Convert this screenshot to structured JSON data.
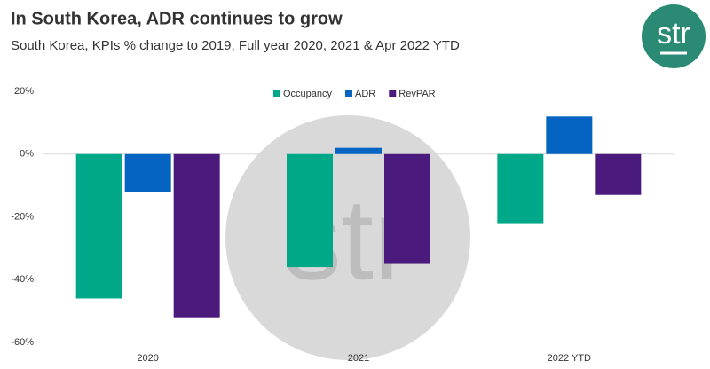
{
  "chart_data": {
    "type": "bar",
    "title": "In South Korea, ADR continues to grow",
    "subtitle": "South Korea, KPIs % change to 2019, Full year 2020, 2021 & Apr 2022 YTD",
    "logo": "str",
    "categories": [
      "2020",
      "2021",
      "2022 YTD"
    ],
    "series": [
      {
        "name": "Occupancy",
        "color": "#00a88a",
        "values": [
          -46,
          -36,
          -22
        ]
      },
      {
        "name": "ADR",
        "color": "#0563c1",
        "values": [
          -12,
          2,
          12
        ]
      },
      {
        "name": "RevPAR",
        "color": "#4b1a7d",
        "values": [
          -52,
          -35,
          -13
        ]
      }
    ],
    "ylim": [
      -60,
      20
    ],
    "yticks": [
      {
        "value": -60,
        "label": "-60%"
      },
      {
        "value": -40,
        "label": "-40%"
      },
      {
        "value": -20,
        "label": "-20%"
      },
      {
        "value": 0,
        "label": "0%"
      },
      {
        "value": 20,
        "label": "20%"
      }
    ],
    "grid": false
  }
}
